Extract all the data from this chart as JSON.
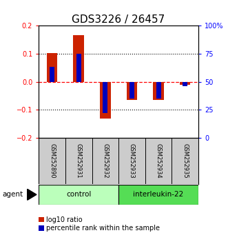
{
  "title": "GDS3226 / 26457",
  "samples": [
    "GSM252890",
    "GSM252931",
    "GSM252932",
    "GSM252933",
    "GSM252934",
    "GSM252935"
  ],
  "log10_ratio": [
    0.103,
    0.165,
    -0.13,
    -0.065,
    -0.065,
    -0.012
  ],
  "percentile_rank": [
    63,
    75,
    22,
    35,
    35,
    46
  ],
  "groups": [
    {
      "label": "control",
      "indices": [
        0,
        1,
        2
      ],
      "color": "#bbffbb"
    },
    {
      "label": "interleukin-22",
      "indices": [
        3,
        4,
        5
      ],
      "color": "#55dd55"
    }
  ],
  "ylim": [
    -0.2,
    0.2
  ],
  "y2lim": [
    0,
    100
  ],
  "yticks": [
    -0.2,
    -0.1,
    0.0,
    0.1,
    0.2
  ],
  "y2ticks": [
    0,
    25,
    50,
    75,
    100
  ],
  "y2ticklabels": [
    "0",
    "25",
    "50",
    "75",
    "100%"
  ],
  "hlines_dotted": [
    -0.1,
    0.1
  ],
  "hline_dashed": 0.0,
  "bar_color_red": "#cc2200",
  "bar_color_blue": "#0000bb",
  "title_fontsize": 11,
  "background_color": "#ffffff",
  "legend_red_label": "log10 ratio",
  "legend_blue_label": "percentile rank within the sample",
  "agent_label": "agent",
  "red_bar_width": 0.4,
  "blue_bar_width": 0.18,
  "sample_bg": "#cccccc"
}
